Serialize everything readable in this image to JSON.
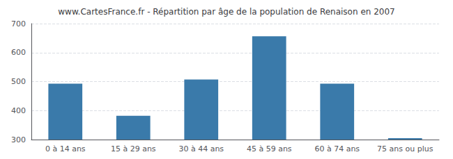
{
  "chart_data": {
    "type": "bar",
    "title": "www.CartesFrance.fr - Répartition par âge de la population de Renaison en 2007",
    "categories": [
      "0 à 14 ans",
      "15 à 29 ans",
      "30 à 44 ans",
      "45 à 59 ans",
      "60 à 74 ans",
      "75 ans ou plus"
    ],
    "values": [
      493,
      382,
      507,
      656,
      493,
      305
    ],
    "color": "#3a7aaa",
    "ylim": [
      300,
      700
    ],
    "yticks": [
      300,
      400,
      500,
      600,
      700
    ],
    "grid": true
  }
}
